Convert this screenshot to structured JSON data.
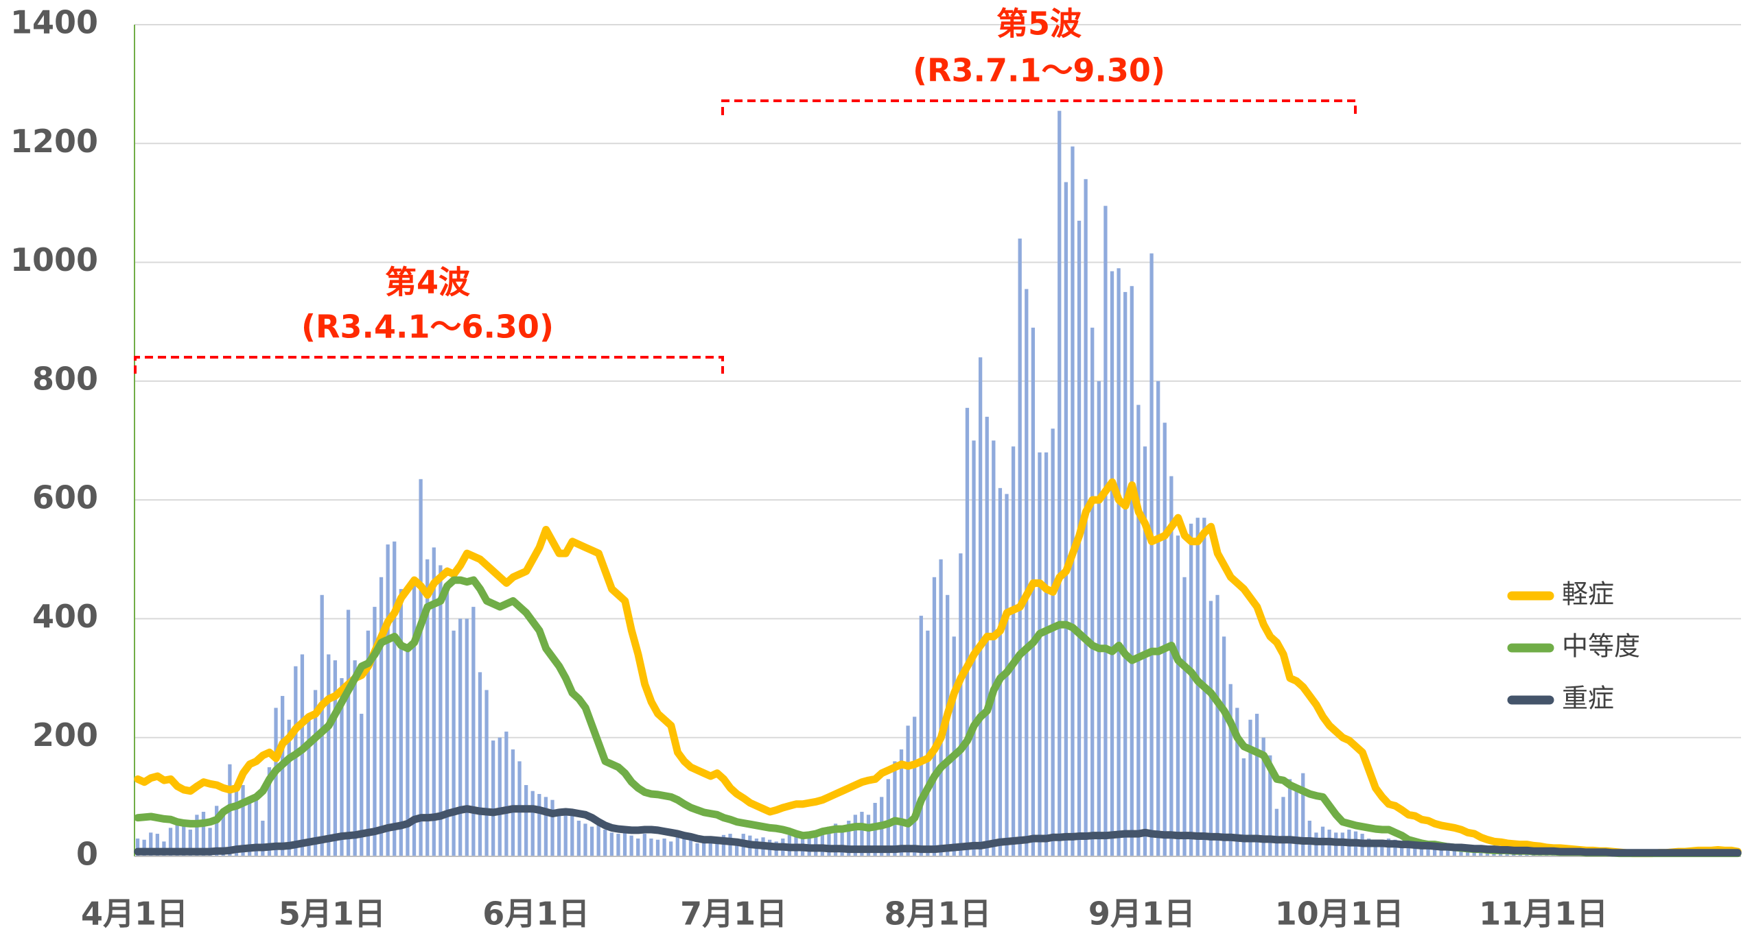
{
  "chart_data": {
    "type": "bar",
    "annotations": [
      "第4波",
      "(R3.4.1～6.30)",
      "第5波",
      "(R3.7.1～9.30)"
    ],
    "annotation_color": "#ff2a00",
    "categories": [
      "4月1日",
      null,
      null,
      null,
      null,
      null,
      null,
      null,
      null,
      null,
      null,
      null,
      null,
      null,
      null,
      null,
      null,
      null,
      null,
      null,
      null,
      null,
      null,
      null,
      null,
      null,
      null,
      null,
      null,
      null,
      "5月1日",
      null,
      null,
      null,
      null,
      null,
      null,
      null,
      null,
      null,
      null,
      null,
      null,
      null,
      null,
      null,
      null,
      null,
      null,
      null,
      null,
      null,
      null,
      null,
      null,
      null,
      null,
      null,
      null,
      null,
      null,
      "6月1日",
      null,
      null,
      null,
      null,
      null,
      null,
      null,
      null,
      null,
      null,
      null,
      null,
      null,
      null,
      null,
      null,
      null,
      null,
      null,
      null,
      null,
      null,
      null,
      null,
      null,
      null,
      null,
      null,
      null,
      "7月1日",
      null,
      null,
      null,
      null,
      null,
      null,
      null,
      null,
      null,
      null,
      null,
      null,
      null,
      null,
      null,
      null,
      null,
      null,
      null,
      null,
      null,
      null,
      null,
      null,
      null,
      null,
      null,
      null,
      null,
      null,
      "8月1日",
      null,
      null,
      null,
      null,
      null,
      null,
      null,
      null,
      null,
      null,
      null,
      null,
      null,
      null,
      null,
      null,
      null,
      null,
      null,
      null,
      null,
      null,
      null,
      null,
      null,
      null,
      null,
      null,
      null,
      null,
      "9月1日",
      null,
      null,
      null,
      null,
      null,
      null,
      null,
      null,
      null,
      null,
      null,
      null,
      null,
      null,
      null,
      null,
      null,
      null,
      null,
      null,
      null,
      null,
      null,
      null,
      null,
      null,
      null,
      null,
      null,
      "10月1日",
      null,
      null,
      null,
      null,
      null,
      null,
      null,
      null,
      null,
      null,
      null,
      null,
      null,
      null,
      null,
      null,
      null,
      null,
      null,
      null,
      null,
      null,
      null,
      null,
      null,
      null,
      null,
      null,
      null,
      null,
      "11月1日",
      null,
      null,
      null,
      null,
      null,
      null,
      null,
      null,
      null,
      null,
      null,
      null,
      null,
      null,
      null,
      null,
      null,
      null,
      null,
      null,
      null,
      null,
      null,
      null,
      null,
      null,
      null,
      null,
      null
    ],
    "series": [
      {
        "type": "bar",
        "color": "#8faadc",
        "values": [
          30,
          28,
          40,
          38,
          25,
          48,
          55,
          60,
          45,
          70,
          75,
          48,
          85,
          70,
          155,
          110,
          120,
          100,
          95,
          60,
          150,
          250,
          270,
          230,
          320,
          340,
          230,
          280,
          440,
          340,
          330,
          300,
          415,
          330,
          240,
          380,
          420,
          470,
          525,
          530,
          450,
          350,
          470,
          635,
          500,
          520,
          490,
          460,
          380,
          400,
          400,
          420,
          310,
          280,
          195,
          200,
          210,
          180,
          160,
          120,
          110,
          105,
          100,
          95,
          80,
          70,
          70,
          60,
          55,
          50,
          55,
          45,
          40,
          38,
          40,
          35,
          30,
          38,
          30,
          28,
          30,
          25,
          33,
          30,
          28,
          22,
          30,
          25,
          28,
          36,
          38,
          20,
          38,
          35,
          30,
          32,
          28,
          25,
          30,
          36,
          38,
          35,
          30,
          40,
          45,
          50,
          55,
          48,
          60,
          70,
          75,
          70,
          90,
          100,
          130,
          160,
          180,
          220,
          235,
          405,
          380,
          470,
          500,
          440,
          370,
          510,
          755,
          700,
          840,
          740,
          700,
          620,
          610,
          690,
          1040,
          955,
          890,
          680,
          680,
          720,
          1255,
          1135,
          1195,
          1070,
          1140,
          890,
          800,
          1095,
          985,
          990,
          950,
          960,
          760,
          690,
          1015,
          800,
          730,
          640,
          540,
          470,
          560,
          570,
          570,
          430,
          440,
          370,
          290,
          250,
          165,
          230,
          240,
          200,
          170,
          80,
          100,
          130,
          120,
          140,
          60,
          40,
          50,
          45,
          40,
          40,
          45,
          42,
          38,
          30,
          25,
          28,
          30,
          28,
          25,
          22,
          20,
          15,
          18,
          22,
          20,
          18,
          16,
          14,
          12,
          15,
          14,
          12,
          10,
          12,
          11,
          10,
          8,
          10,
          12,
          9,
          9,
          10,
          8,
          7,
          9,
          8,
          6,
          7,
          8,
          6,
          5,
          7,
          6,
          5,
          6,
          8,
          7,
          5,
          6,
          5,
          7,
          8,
          6,
          5,
          7,
          6,
          8,
          7,
          9,
          8
        ]
      },
      {
        "type": "line",
        "name": "軽症",
        "color": "#ffc000",
        "values": [
          130,
          125,
          132,
          135,
          128,
          130,
          118,
          112,
          110,
          118,
          125,
          122,
          120,
          115,
          112,
          115,
          140,
          155,
          160,
          170,
          175,
          165,
          190,
          200,
          215,
          225,
          235,
          240,
          255,
          265,
          270,
          280,
          290,
          300,
          305,
          320,
          345,
          370,
          395,
          410,
          435,
          450,
          465,
          455,
          440,
          460,
          470,
          480,
          475,
          490,
          510,
          505,
          500,
          490,
          480,
          470,
          460,
          470,
          475,
          480,
          500,
          520,
          550,
          530,
          510,
          510,
          530,
          525,
          520,
          515,
          510,
          480,
          450,
          440,
          430,
          380,
          340,
          290,
          260,
          240,
          230,
          220,
          175,
          160,
          150,
          145,
          140,
          135,
          140,
          130,
          115,
          105,
          98,
          90,
          85,
          80,
          75,
          78,
          82,
          85,
          88,
          88,
          90,
          92,
          95,
          100,
          105,
          110,
          115,
          120,
          125,
          128,
          130,
          140,
          145,
          150,
          155,
          152,
          155,
          160,
          165,
          180,
          200,
          240,
          275,
          300,
          320,
          340,
          355,
          370,
          370,
          380,
          410,
          415,
          420,
          440,
          460,
          460,
          450,
          445,
          470,
          480,
          510,
          540,
          580,
          600,
          600,
          615,
          630,
          600,
          590,
          625,
          580,
          560,
          530,
          535,
          540,
          555,
          570,
          540,
          530,
          530,
          545,
          555,
          510,
          490,
          470,
          460,
          450,
          435,
          420,
          390,
          370,
          360,
          340,
          300,
          295,
          285,
          270,
          255,
          235,
          220,
          210,
          200,
          195,
          185,
          175,
          145,
          115,
          100,
          88,
          85,
          78,
          70,
          68,
          62,
          60,
          55,
          52,
          50,
          48,
          45,
          40,
          38,
          32,
          28,
          25,
          24,
          22,
          21,
          20,
          20,
          18,
          17,
          15,
          14,
          14,
          13,
          12,
          11,
          10,
          10,
          9,
          9,
          8,
          7,
          6,
          5,
          5,
          5,
          5,
          6,
          6,
          7,
          8,
          8,
          9,
          10,
          10,
          10,
          11,
          10,
          10,
          8
        ]
      },
      {
        "type": "line",
        "name": "中等度",
        "color": "#70ad47",
        "values": [
          65,
          66,
          67,
          65,
          63,
          62,
          58,
          56,
          55,
          55,
          56,
          58,
          62,
          75,
          82,
          85,
          90,
          95,
          100,
          110,
          130,
          145,
          155,
          165,
          172,
          180,
          190,
          200,
          210,
          220,
          240,
          260,
          280,
          300,
          320,
          325,
          340,
          360,
          365,
          370,
          355,
          350,
          360,
          390,
          420,
          425,
          430,
          455,
          465,
          465,
          462,
          465,
          450,
          430,
          425,
          420,
          425,
          430,
          420,
          410,
          395,
          380,
          350,
          335,
          320,
          300,
          275,
          265,
          250,
          220,
          190,
          160,
          155,
          150,
          140,
          125,
          115,
          108,
          105,
          104,
          102,
          100,
          95,
          88,
          82,
          78,
          74,
          72,
          70,
          65,
          62,
          58,
          56,
          54,
          52,
          50,
          48,
          47,
          45,
          42,
          38,
          35,
          36,
          38,
          42,
          44,
          46,
          46,
          48,
          50,
          50,
          48,
          50,
          52,
          55,
          60,
          58,
          55,
          65,
          95,
          115,
          135,
          150,
          160,
          170,
          180,
          195,
          220,
          235,
          245,
          280,
          300,
          310,
          325,
          340,
          350,
          360,
          375,
          380,
          385,
          390,
          390,
          385,
          375,
          365,
          355,
          350,
          350,
          345,
          355,
          340,
          330,
          335,
          340,
          345,
          345,
          350,
          355,
          330,
          320,
          310,
          295,
          285,
          275,
          260,
          245,
          225,
          200,
          185,
          180,
          175,
          170,
          150,
          130,
          128,
          120,
          115,
          110,
          105,
          102,
          100,
          85,
          70,
          58,
          55,
          52,
          50,
          48,
          46,
          45,
          45,
          40,
          35,
          28,
          25,
          22,
          20,
          20,
          18,
          16,
          15,
          14,
          13,
          12,
          12,
          11,
          10,
          10,
          10,
          9,
          9,
          9,
          8,
          8,
          8,
          8,
          7,
          7,
          7,
          7,
          6,
          6,
          6,
          6,
          6,
          5,
          5,
          5,
          5,
          5,
          5,
          5,
          5,
          5,
          5,
          5,
          5,
          5,
          5,
          5,
          5,
          5,
          5,
          5
        ]
      },
      {
        "type": "line",
        "name": "重症",
        "color": "#44546a",
        "values": [
          8,
          8,
          8,
          8,
          8,
          8,
          8,
          8,
          8,
          8,
          8,
          8,
          9,
          9,
          10,
          12,
          13,
          14,
          15,
          15,
          16,
          17,
          17,
          18,
          20,
          22,
          24,
          26,
          28,
          30,
          32,
          34,
          35,
          36,
          38,
          40,
          42,
          45,
          48,
          50,
          52,
          55,
          62,
          65,
          65,
          66,
          68,
          72,
          75,
          78,
          80,
          78,
          76,
          75,
          74,
          76,
          78,
          80,
          80,
          80,
          80,
          78,
          75,
          72,
          74,
          75,
          74,
          72,
          70,
          65,
          58,
          52,
          48,
          46,
          45,
          44,
          44,
          45,
          45,
          44,
          42,
          40,
          38,
          35,
          33,
          30,
          28,
          28,
          27,
          26,
          25,
          24,
          22,
          20,
          19,
          18,
          17,
          16,
          16,
          15,
          15,
          15,
          14,
          14,
          14,
          13,
          13,
          13,
          12,
          12,
          12,
          12,
          12,
          12,
          12,
          12,
          13,
          13,
          13,
          12,
          12,
          12,
          13,
          14,
          15,
          16,
          17,
          18,
          18,
          20,
          22,
          24,
          25,
          26,
          27,
          28,
          30,
          30,
          30,
          32,
          32,
          33,
          33,
          34,
          34,
          35,
          35,
          35,
          36,
          37,
          38,
          38,
          38,
          40,
          38,
          37,
          36,
          36,
          35,
          35,
          35,
          34,
          34,
          33,
          33,
          32,
          32,
          31,
          30,
          30,
          30,
          29,
          29,
          28,
          28,
          28,
          27,
          26,
          26,
          25,
          25,
          25,
          24,
          24,
          23,
          23,
          22,
          22,
          22,
          22,
          21,
          21,
          20,
          20,
          19,
          18,
          18,
          17,
          16,
          16,
          15,
          15,
          14,
          13,
          13,
          12,
          12,
          11,
          11,
          10,
          10,
          10,
          9,
          9,
          9,
          9,
          8,
          8,
          8,
          8,
          7,
          7,
          7,
          7,
          6,
          6,
          6,
          6,
          6,
          6,
          6,
          6,
          6,
          6,
          6,
          6,
          6,
          6,
          6,
          6,
          6,
          6,
          6,
          6
        ]
      }
    ],
    "ylim": [
      0,
      1400
    ],
    "yticks": [
      0,
      200,
      400,
      600,
      800,
      1000,
      1200,
      1400
    ],
    "grid": true,
    "legend": "right"
  }
}
